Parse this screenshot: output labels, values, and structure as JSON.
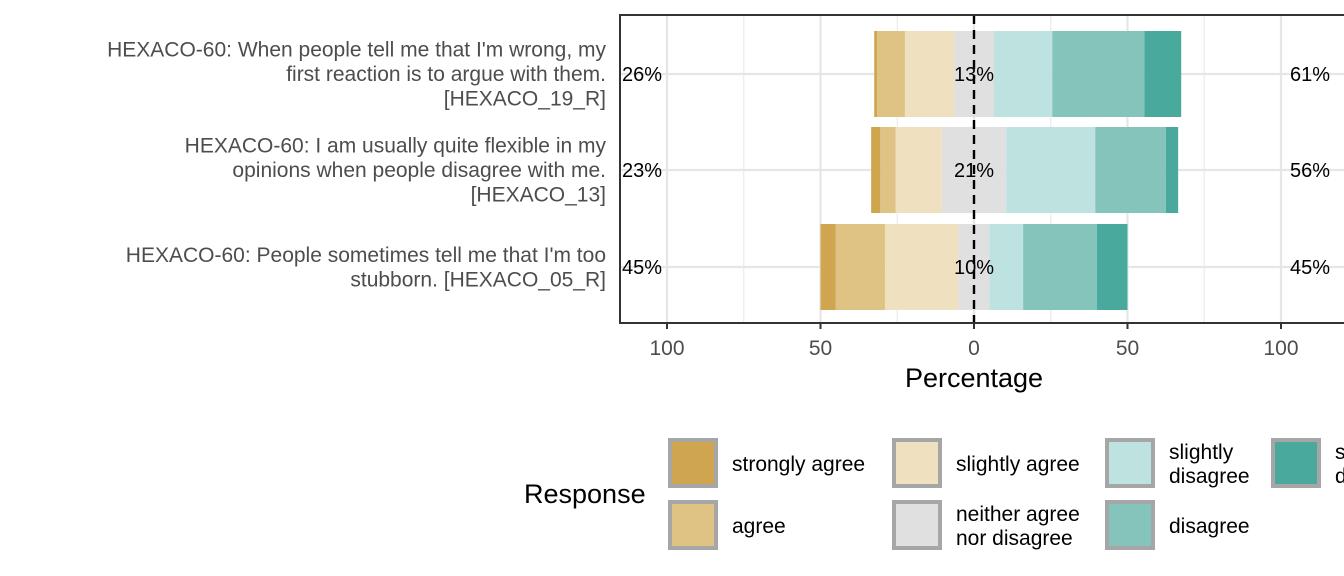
{
  "chart_data": {
    "type": "bar",
    "orientation": "horizontal-diverging",
    "xlabel": "Percentage",
    "xlim": [
      -100,
      100
    ],
    "x_ticks": [
      -100,
      -50,
      0,
      50,
      100
    ],
    "x_tick_labels": [
      "100",
      "50",
      "0",
      "50",
      "100"
    ],
    "grid": true,
    "legend_title": "Response",
    "legend_position": "bottom",
    "categories": [
      {
        "name": "strongly agree",
        "color": "#D0A550"
      },
      {
        "name": "agree",
        "color": "#DFC385"
      },
      {
        "name": "slightly agree",
        "color": "#EFE0C0"
      },
      {
        "name": "neither agree nor disagree",
        "color": "#E0E0E0"
      },
      {
        "name": "slightly disagree",
        "color": "#BEE2DF"
      },
      {
        "name": "disagree",
        "color": "#84C4BB"
      },
      {
        "name": "strongly disagree",
        "color": "#4AA99D"
      }
    ],
    "legend_entries": [
      {
        "lines": [
          "strongly agree"
        ],
        "color": "#D0A550"
      },
      {
        "lines": [
          "agree"
        ],
        "color": "#DFC385"
      },
      {
        "lines": [
          "slightly agree"
        ],
        "color": "#EFE0C0"
      },
      {
        "lines": [
          "neither agree",
          "nor disagree"
        ],
        "color": "#E0E0E0"
      },
      {
        "lines": [
          "slightly",
          "disagree"
        ],
        "color": "#BEE2DF"
      },
      {
        "lines": [
          "disagree"
        ],
        "color": "#84C4BB"
      },
      {
        "lines": [
          "s",
          "d"
        ],
        "color": "#4AA99D"
      }
    ],
    "items": [
      {
        "label_lines": [
          "HEXACO-60: When people tell me that I'm wrong, my",
          "first reaction is to argue with them.",
          "[HEXACO_19_R]"
        ],
        "values": [
          1,
          9,
          16,
          13,
          19,
          30,
          12
        ],
        "left_pct": "26%",
        "center_pct": "13%",
        "right_pct": "61%"
      },
      {
        "label_lines": [
          "HEXACO-60: I am usually quite flexible in my",
          "opinions when people disagree with me.",
          "[HEXACO_13]"
        ],
        "values": [
          3,
          5,
          15,
          21,
          29,
          23,
          4
        ],
        "left_pct": "23%",
        "center_pct": "21%",
        "right_pct": "56%"
      },
      {
        "label_lines": [
          "HEXACO-60: People sometimes tell me that I'm too",
          "stubborn. [HEXACO_05_R]"
        ],
        "values": [
          5,
          16,
          24,
          10,
          11,
          24,
          10
        ],
        "left_pct": "45%",
        "center_pct": "10%",
        "right_pct": "45%"
      }
    ]
  }
}
